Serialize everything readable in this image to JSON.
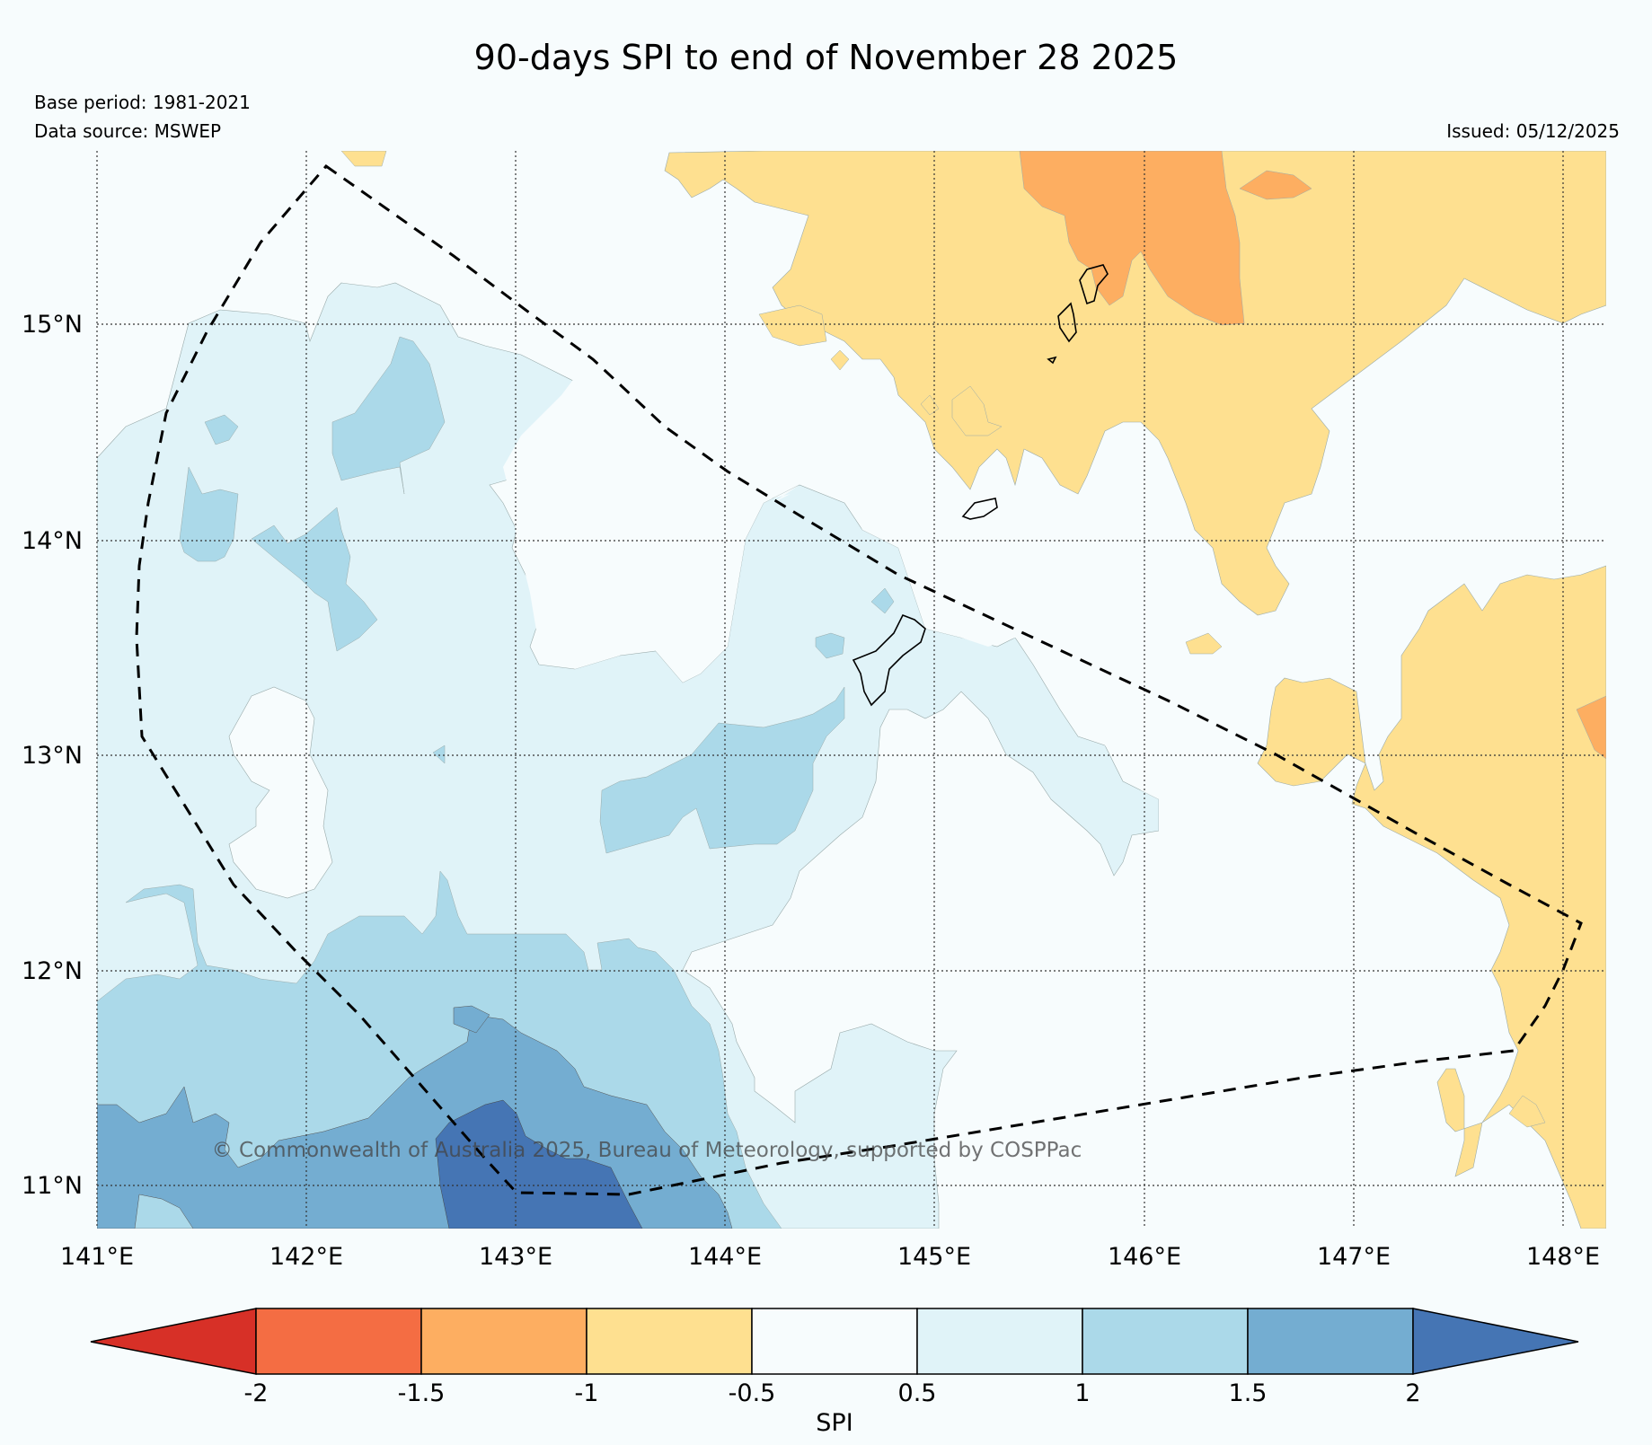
{
  "title": "90-days SPI to end of November 28 2025",
  "base_period": "Base period: 1981-2021",
  "data_source": "Data source: MSWEP",
  "issued": "Issued: 05/12/2025",
  "copyright": "© Commonwealth of Australia 2025, Bureau of Meteorology, supported by COSPPac",
  "map": {
    "lon_labels": [
      "141°E",
      "142°E",
      "143°E",
      "144°E",
      "145°E",
      "146°E",
      "147°E",
      "148°E"
    ],
    "lat_labels": [
      "15°N",
      "14°N",
      "13°N",
      "12°N",
      "11°N"
    ]
  },
  "colorbar": {
    "label": "SPI",
    "ticks": [
      "-2",
      "-1.5",
      "-1",
      "-0.5",
      "0.5",
      "1",
      "1.5",
      "2"
    ],
    "colors": {
      "lt_-2": "#d73027",
      "-2_-1.5": "#f46d43",
      "-1.5_-1": "#fdae61",
      "-1_-0.5": "#fee090",
      "-0.5_0.5": "#f7fcfd",
      "0.5_1": "#e0f3f8",
      "1_1.5": "#abd9e9",
      "1.5_2": "#74add1",
      "gt_2": "#4575b4"
    }
  }
}
